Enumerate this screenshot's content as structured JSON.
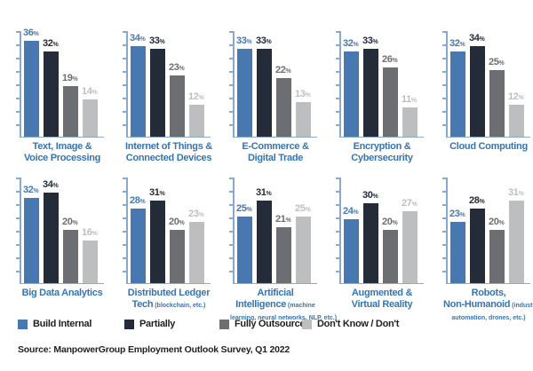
{
  "page": {
    "source_note": "Source: ManpowerGroup Employment Outlook Survey, Q1 2022"
  },
  "legend": {
    "items": [
      {
        "label": "Build Internal",
        "color": "#4878B0"
      },
      {
        "label": "Partially",
        "color": "#242C39"
      },
      {
        "label": "Fully Outsource",
        "color": "#6D6E71"
      },
      {
        "label": "Don't Know / Don't",
        "color": "#BCBEC0"
      }
    ]
  },
  "chart_data": {
    "type": "bar",
    "series": [
      "Build Internal",
      "Partially",
      "Fully Outsource",
      "Don't Know / Don't"
    ],
    "series_colors": [
      "#4878B0",
      "#242C39",
      "#6D6E71",
      "#BCBEC0"
    ],
    "unit": "%",
    "ylim": [
      0,
      40
    ],
    "y_tick_step": 5,
    "grid": false,
    "legend_position": "bottom",
    "axis_color": "#8AA9CE",
    "title_color": "#3575B4",
    "panels": [
      {
        "title_lines": [
          {
            "big": "Text, Image &"
          },
          {
            "big": "Voice Processing"
          }
        ],
        "values": [
          36,
          32,
          19,
          14
        ]
      },
      {
        "title_lines": [
          {
            "big": "Internet of Things &"
          },
          {
            "big": "Connected Devices"
          }
        ],
        "values": [
          34,
          33,
          23,
          12
        ]
      },
      {
        "title_lines": [
          {
            "big": "E-Commerce &"
          },
          {
            "big": "Digital Trade"
          }
        ],
        "values": [
          33,
          33,
          22,
          13
        ]
      },
      {
        "title_lines": [
          {
            "big": "Encryption &"
          },
          {
            "big": "Cybersecurity"
          }
        ],
        "values": [
          32,
          33,
          26,
          11
        ]
      },
      {
        "title_lines": [
          {
            "big": "Cloud Computing"
          }
        ],
        "values": [
          32,
          34,
          25,
          12
        ]
      },
      {
        "title_lines": [
          {
            "big": "Big Data Analytics"
          }
        ],
        "values": [
          32,
          34,
          20,
          16
        ]
      },
      {
        "title_lines": [
          {
            "big": "Distributed Ledger"
          },
          {
            "big": "Tech",
            "small": "(blockchain, etc.)"
          }
        ],
        "values": [
          28,
          31,
          20,
          23
        ]
      },
      {
        "title_lines": [
          {
            "big": "Artificial"
          },
          {
            "big": "Intelligence",
            "small": "(machine"
          },
          {
            "small": "learning, neural networks, NLP, etc.)"
          }
        ],
        "values": [
          25,
          31,
          21,
          25
        ]
      },
      {
        "title_lines": [
          {
            "big": "Augmented &"
          },
          {
            "big": "Virtual Reality"
          }
        ],
        "values": [
          24,
          30,
          20,
          27
        ]
      },
      {
        "title_lines": [
          {
            "big": "Robots,"
          },
          {
            "big": "Non-Humanoid",
            "small": "(industrial"
          },
          {
            "small": "automation, drones, etc.)"
          }
        ],
        "values": [
          23,
          28,
          20,
          31
        ]
      }
    ]
  }
}
